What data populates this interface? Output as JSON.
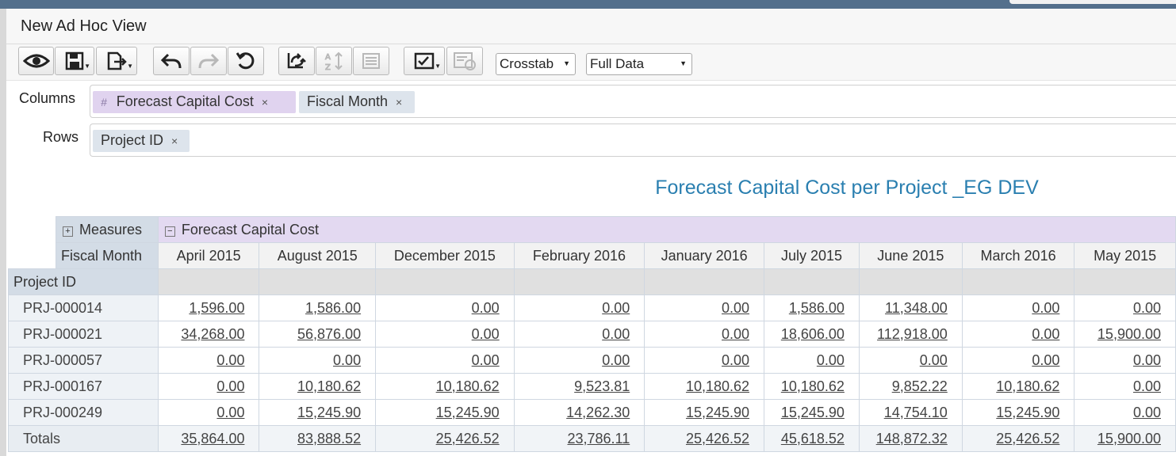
{
  "view": {
    "title": "New Ad Hoc View"
  },
  "toolbar": {
    "view_type": "Crosstab",
    "data_mode": "Full Data",
    "buttons": [
      "eye-icon",
      "save-icon",
      "export-icon",
      "undo-icon",
      "redo-icon",
      "reset-icon",
      "switch-axes-icon",
      "sort-icon",
      "page-icon",
      "input-controls-icon",
      "options-icon"
    ]
  },
  "pivot": {
    "columns_label": "Columns",
    "rows_label": "Rows",
    "columns": [
      {
        "label": "Forecast Capital Cost",
        "kind": "measure",
        "marker": "#"
      },
      {
        "label": "Fiscal Month",
        "kind": "field"
      }
    ],
    "rows": [
      {
        "label": "Project ID",
        "kind": "field"
      }
    ],
    "remove_glyph": "×"
  },
  "report": {
    "title": "Forecast Capital Cost per Project _EG DEV"
  },
  "crosstab": {
    "measures_label": "Measures",
    "measure_name": "Forecast Capital Cost",
    "fiscal_month_label": "Fiscal Month",
    "project_id_label": "Project ID",
    "expand_glyph": "+",
    "collapse_glyph": "−",
    "months": [
      "April 2015",
      "August 2015",
      "December 2015",
      "February 2016",
      "January 2016",
      "July 2015",
      "June 2015",
      "March 2016",
      "May 2015"
    ],
    "rows": [
      {
        "id": "PRJ-000014",
        "values": [
          "1,596.00",
          "1,586.00",
          "0.00",
          "0.00",
          "0.00",
          "1,586.00",
          "11,348.00",
          "0.00",
          "0.00"
        ]
      },
      {
        "id": "PRJ-000021",
        "values": [
          "34,268.00",
          "56,876.00",
          "0.00",
          "0.00",
          "0.00",
          "18,606.00",
          "112,918.00",
          "0.00",
          "15,900.00"
        ]
      },
      {
        "id": "PRJ-000057",
        "values": [
          "0.00",
          "0.00",
          "0.00",
          "0.00",
          "0.00",
          "0.00",
          "0.00",
          "0.00",
          "0.00"
        ]
      },
      {
        "id": "PRJ-000167",
        "values": [
          "0.00",
          "10,180.62",
          "10,180.62",
          "9,523.81",
          "10,180.62",
          "10,180.62",
          "9,852.22",
          "10,180.62",
          "0.00"
        ]
      },
      {
        "id": "PRJ-000249",
        "values": [
          "0.00",
          "15,245.90",
          "15,245.90",
          "14,262.30",
          "15,245.90",
          "15,245.90",
          "14,754.10",
          "15,245.90",
          "0.00"
        ]
      }
    ],
    "totals": {
      "label": "Totals",
      "values": [
        "35,864.00",
        "83,888.52",
        "25,426.52",
        "23,786.11",
        "25,426.52",
        "45,618.52",
        "148,872.32",
        "25,426.52",
        "15,900.00"
      ]
    }
  }
}
